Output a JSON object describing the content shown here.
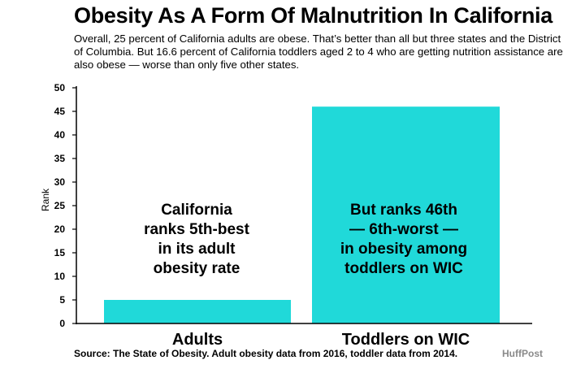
{
  "title": "Obesity As A Form Of Malnutrition In California",
  "subtitle": "Overall, 25 percent of California adults are obese. That’s better than all but three states and the District of Columbia. But 16.6 percent of California toddlers aged 2 to 4 who are getting nutrition assistance are also obese — worse than only five other states.",
  "source": "Source: The State of Obesity. Adult obesity data from 2016, toddler data from 2014.",
  "brand": "HuffPost",
  "colors": {
    "bar": "#20d9d9",
    "axis": "#000000"
  },
  "chart_data": {
    "type": "bar",
    "categories": [
      "Adults",
      "Toddlers on WIC"
    ],
    "values": [
      5,
      46
    ],
    "ylabel": "Rank",
    "xlabel": "",
    "ylim": [
      0,
      50
    ],
    "yticks": [
      0,
      5,
      10,
      15,
      20,
      25,
      30,
      35,
      40,
      45,
      50
    ],
    "grid": false,
    "annotations": [
      [
        "California",
        "ranks 5th-best",
        "in its adult",
        "obesity rate"
      ],
      [
        "But ranks 46th",
        "— 6th-worst —",
        "in obesity among",
        "toddlers on WIC"
      ]
    ]
  }
}
